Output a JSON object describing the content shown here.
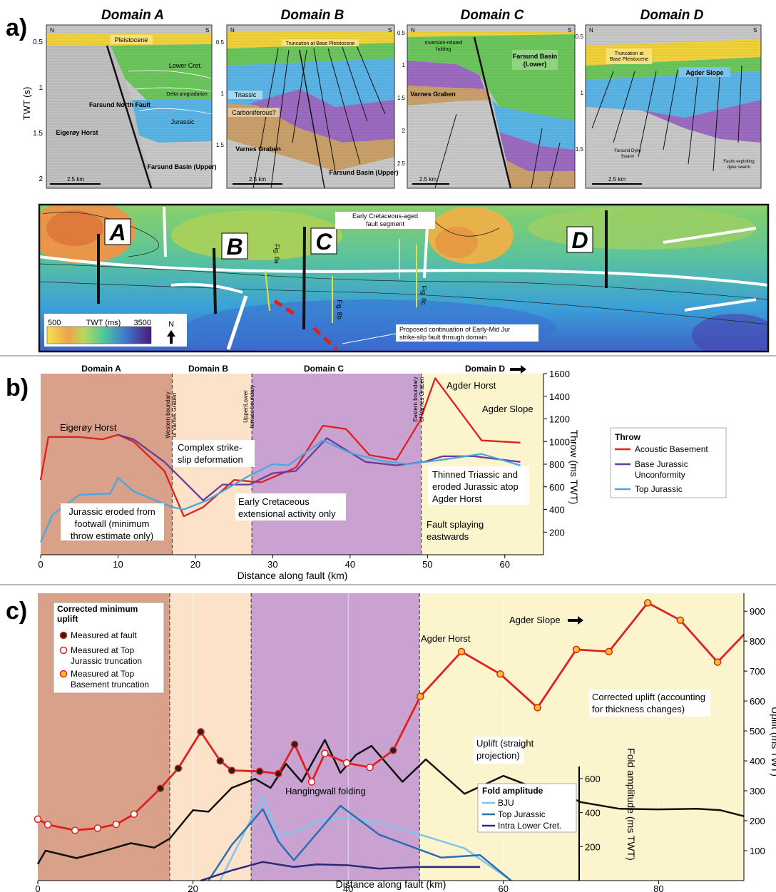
{
  "colors": {
    "pleistocene": "#f2d23a",
    "lower_cret": "#6cc55c",
    "jurassic": "#5ab4e6",
    "triassic": "#9a6bc0",
    "carboniferous": "#c9a06a",
    "basement": "#bfbfbf",
    "fault": "#111111",
    "domainA": "#d9a08a",
    "domainB": "#fbe2c8",
    "domainC": "#c9a2d2",
    "domainD": "#fbf4cc",
    "acoustic_basement": "#e0201c",
    "bju": "#6a3d9a",
    "top_jurassic": "#4aa8dc",
    "fold_bju": "#7fc6ea",
    "fold_tj": "#2a6fb3",
    "fold_ilc": "#2a2a7a"
  },
  "panel_a": {
    "letter": "a)",
    "ylabel": "TWT (s)",
    "sections": [
      {
        "title": "Domain A",
        "left_label": "N",
        "right_label": "S",
        "scale": "2.5 km",
        "yticks": [
          "0.5",
          "1",
          "1.5",
          "2"
        ],
        "labels": [
          "Pleistocene",
          "Lower Cret.",
          "Delta progradation",
          "Jurassic",
          "Eigerøy Horst",
          "Farsund North Fault",
          "Farsund Basin (Upper)"
        ]
      },
      {
        "title": "Domain B",
        "left_label": "N",
        "right_label": "S",
        "scale": "2.5 km",
        "yticks": [
          "0.5",
          "1",
          "1.5"
        ],
        "labels": [
          "Truncation at Base Pleistocene",
          "Triassic",
          "Carboniferous?",
          "Varnes Graben",
          "Farsund Basin (Upper)"
        ]
      },
      {
        "title": "Domain C",
        "left_label": "N",
        "right_label": "S",
        "scale": "2.5 km",
        "yticks": [
          "0.5",
          "1",
          "1.5",
          "2",
          "2.5"
        ],
        "labels": [
          "Inversion-related folding",
          "Farsund Basin (Lower)",
          "Varnes Graben"
        ]
      },
      {
        "title": "Domain D",
        "left_label": "N",
        "right_label": "S",
        "scale": "2.5 km",
        "yticks": [
          "0.5",
          "1",
          "1.5"
        ],
        "labels": [
          "Truncation at Base Pleistocene",
          "Agder Slope",
          "Farsund Dyke Swarm",
          "Faults exploiting dyke swarm"
        ]
      }
    ],
    "map": {
      "domain_labels": [
        "A",
        "B",
        "C",
        "D"
      ],
      "fig_labels": [
        "Fig. 8a",
        "Fig. 8b",
        "Fig. 8c"
      ],
      "callout_top": "Early Cretaceous-aged fault segment",
      "callout_bottom": "Proposed continuation of Early-Mid Jur strike-slip fault through domain",
      "legend_min": "500",
      "legend_title": "TWT (ms)",
      "legend_max": "3500",
      "north": "N"
    }
  },
  "panel_b": {
    "letter": "b)",
    "domain_labels": [
      "Domain A",
      "Domain B",
      "Domain C",
      "Domain D"
    ],
    "boundaries": [
      "Western boundary of Varnes Graben",
      "Upper/Lower terrace boundary",
      "Eastern boundary of Varnes Graben"
    ],
    "annotations": [
      "Eigerøy Horst",
      "Complex strike-slip deformation",
      "Jurassic eroded from footwall (minimum throw estimate only)",
      "Early Cretaceous extensional activity only",
      "Agder Horst",
      "Agder Slope",
      "Thinned Triassic and eroded Jurassic atop Agder Horst",
      "Fault splaying eastwards"
    ],
    "legend_title": "Throw",
    "legend": [
      "Acoustic Basement",
      "Base Jurassic Unconformity",
      "Top Jurassic"
    ]
  },
  "panel_c": {
    "letter": "c)",
    "legend_title": "Corrected minimum uplift",
    "legend": [
      "Measured at fault",
      "Measured at Top Jurassic truncation",
      "Measured at Top Basement truncation"
    ],
    "annotations": [
      "Agder Slope",
      "Agder Horst",
      "Corrected uplift (accounting for thickness changes)",
      "Uplift (straight projection)",
      "Hangingwall folding"
    ],
    "fold_legend_title": "Fold amplitude",
    "fold_legend": [
      "BJU",
      "Top Jurassic",
      "Intra Lower Cret."
    ],
    "fold_ylabel": "Fold amplitude (ms TWT)",
    "right_ylabel": "Uplift (ms TWT)"
  },
  "chart_data": [
    {
      "type": "line",
      "xlabel": "Distance along fault (km)",
      "ylabel": "Throw (ms TWT)",
      "xlim": [
        0,
        65
      ],
      "ylim": [
        0,
        1600
      ],
      "xticks": [
        0,
        10,
        20,
        30,
        40,
        50,
        60
      ],
      "yticks": [
        200,
        400,
        600,
        800,
        1000,
        1200,
        1400,
        1600
      ],
      "domain_bounds": [
        0,
        17,
        27.3,
        49.2,
        65
      ],
      "series": [
        {
          "name": "Acoustic Basement",
          "x": [
            0,
            1,
            5,
            8,
            10,
            12,
            16,
            18.5,
            21,
            25,
            28.5,
            33,
            36.5,
            39.5,
            42.5,
            46,
            49,
            51,
            57,
            62
          ],
          "y": [
            660,
            1040,
            1040,
            1020,
            1060,
            1000,
            740,
            340,
            420,
            660,
            640,
            770,
            1140,
            1110,
            880,
            840,
            1180,
            1560,
            1010,
            990
          ]
        },
        {
          "name": "Base Jurassic Unconformity",
          "x": [
            10,
            12,
            16,
            21,
            23.5,
            27,
            30,
            33,
            37,
            42,
            46,
            49.5,
            52,
            56,
            62
          ],
          "y": [
            1060,
            1020,
            820,
            480,
            620,
            620,
            720,
            740,
            1030,
            820,
            790,
            820,
            870,
            870,
            820
          ]
        },
        {
          "name": "Top Jurassic",
          "x": [
            0,
            1.5,
            5,
            9,
            10,
            12,
            17,
            18.5,
            21.5,
            27,
            30,
            32,
            34,
            36.5,
            40,
            44,
            47.5,
            52,
            57,
            62
          ],
          "y": [
            110,
            350,
            530,
            540,
            680,
            560,
            420,
            400,
            480,
            700,
            800,
            790,
            890,
            1010,
            900,
            830,
            800,
            840,
            890,
            790
          ]
        }
      ]
    },
    {
      "type": "line",
      "xlabel": "Distance along fault (km)",
      "ylabel": "Uplift (ms TWT)",
      "xlim": [
        0,
        91
      ],
      "ylim": [
        0,
        960
      ],
      "xticks": [
        0,
        20,
        40,
        60,
        80
      ],
      "yticks": [
        100,
        200,
        300,
        400,
        500,
        600,
        700,
        800,
        900
      ],
      "domain_bounds": [
        0,
        17,
        27.5,
        49.2,
        91
      ],
      "series": [
        {
          "name": "Corrected uplift (accounting for thickness changes)",
          "x": [
            0,
            1.3,
            4.8,
            7.7,
            10.1,
            12.4,
            15.8,
            18.1,
            21,
            23.5,
            25,
            28.6,
            31,
            33.1,
            35.3,
            37,
            39.8,
            42.8,
            45.8,
            49.3,
            54.6,
            59.6,
            64.4,
            69.4,
            73.6,
            78.6,
            82.8,
            87.6,
            91
          ],
          "y": [
            205,
            187,
            168,
            175,
            188,
            222,
            308,
            375,
            497,
            400,
            368,
            365,
            357,
            455,
            330,
            425,
            393,
            378,
            435,
            615,
            765,
            690,
            578,
            772,
            765,
            928,
            870,
            730,
            822
          ],
          "markers": [
            "top_jurassic",
            "top_jurassic",
            "top_jurassic",
            "top_jurassic",
            "top_jurassic",
            "top_jurassic",
            "fault",
            "fault",
            "fault",
            "fault",
            "fault",
            "fault",
            "fault",
            "fault",
            "top_jurassic",
            "top_jurassic",
            "top_jurassic",
            "top_jurassic",
            "fault",
            "basement",
            "basement",
            "basement",
            "basement",
            "basement",
            "basement",
            "basement",
            "basement",
            "basement",
            "none"
          ]
        },
        {
          "name": "Uplift (straight projection)",
          "x": [
            0,
            1,
            5,
            8,
            12,
            15,
            17,
            20,
            22,
            25,
            28,
            30,
            32,
            34,
            37,
            39,
            41,
            43,
            45,
            47,
            50,
            55,
            60,
            65,
            68,
            70,
            75,
            80,
            85,
            88,
            91
          ],
          "y": [
            55,
            100,
            75,
            95,
            125,
            110,
            140,
            235,
            230,
            310,
            340,
            310,
            390,
            330,
            470,
            360,
            420,
            450,
            390,
            330,
            405,
            290,
            350,
            300,
            285,
            262,
            240,
            238,
            240,
            235,
            215
          ]
        }
      ]
    },
    {
      "type": "line",
      "xlabel": "",
      "ylabel": "Fold amplitude (ms TWT)",
      "ylim": [
        0,
        650
      ],
      "yticks": [
        200,
        400,
        600
      ],
      "series": [
        {
          "name": "BJU",
          "x": [
            23.5,
            29,
            31,
            34,
            36,
            40,
            44,
            50,
            55,
            61
          ],
          "y": [
            0,
            500,
            260,
            300,
            350,
            370,
            340,
            260,
            190,
            0
          ]
        },
        {
          "name": "Top Jurassic",
          "x": [
            22,
            25,
            29,
            31,
            33,
            39,
            44,
            52,
            57,
            61
          ],
          "y": [
            0,
            210,
            420,
            230,
            120,
            440,
            270,
            135,
            150,
            0
          ]
        },
        {
          "name": "Intra Lower Cret.",
          "x": [
            21,
            25,
            29,
            33,
            36,
            40,
            44,
            49,
            57
          ],
          "y": [
            0,
            60,
            110,
            80,
            95,
            90,
            70,
            80,
            80
          ]
        }
      ]
    }
  ]
}
